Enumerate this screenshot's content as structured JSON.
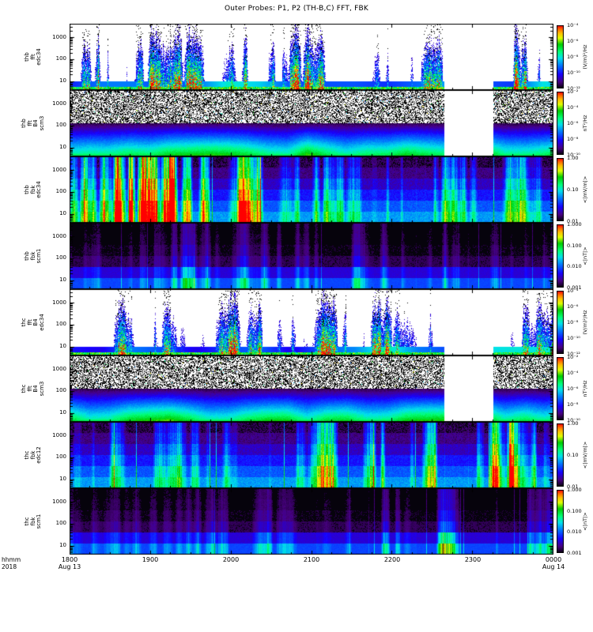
{
  "title": "Outer Probes: P1, P2 (TH-B,C) FFT, FBK",
  "footer": {
    "line1": "hhmm",
    "line2": "2018"
  },
  "x_axis": {
    "tick_labels": [
      "1800",
      "1900",
      "2000",
      "2100",
      "2200",
      "2300",
      "0000"
    ],
    "start_date": "Aug 13",
    "end_date": "Aug 14"
  },
  "y_axis": {
    "scale": "log",
    "units": "Hz",
    "range": [
      4,
      4096
    ],
    "tick_values": [
      1000,
      100,
      10
    ],
    "tick_labels": [
      "1000",
      "100",
      "10"
    ]
  },
  "chart_data": {
    "type": "heatmap",
    "subtype": "spectrogram_stack",
    "title": "Outer Probes: P1, P2 (TH-B,C) FFT, FBK",
    "time_start": "Aug 13 2018 18:00",
    "time_end": "Aug 14 2018 00:00",
    "x_hours": [
      18,
      24
    ],
    "grid": false,
    "colormap": "rainbow",
    "data_gap_fraction": [
      0.775,
      0.877
    ],
    "panels": [
      {
        "id": "thb-fft-edc34",
        "label_lines": [
          "thb",
          "fft",
          "edc34"
        ],
        "quantity": "E-field FFT power spectrum",
        "style": "e_fft",
        "seed": 11,
        "scale": 1.1,
        "gap": true,
        "colorbar": {
          "tick_labels": [
            "10⁻⁴",
            "10⁻⁶",
            "10⁻⁸",
            "10⁻¹⁰",
            "10⁻¹²"
          ],
          "unit": "(V/m)²/Hz",
          "min": 1e-12,
          "max": 0.0001
        }
      },
      {
        "id": "thb-fft-scm3",
        "label_lines": [
          "thb",
          "fft",
          "B4",
          "scm3"
        ],
        "quantity": "B-field FFT power spectrum",
        "style": "b_fft",
        "seed": 22,
        "scale": 1,
        "gap": true,
        "colorbar": {
          "tick_labels": [
            "10⁻²",
            "10⁻⁴",
            "10⁻⁶",
            "10⁻⁸",
            "10⁻¹⁰"
          ],
          "unit": "nT²/Hz",
          "min": 1e-10,
          "max": 0.01
        }
      },
      {
        "id": "thb-fbk-edc34",
        "label_lines": [
          "thb",
          "fbk",
          "edc34"
        ],
        "quantity": "E-field filter-bank amplitude",
        "style": "fbk_e",
        "seed": 33,
        "scale": 1,
        "gap": false,
        "activity_profile": [
          1.3,
          1.15,
          1.3,
          1.05,
          0.9,
          0.6,
          0.55,
          0.6,
          0.5,
          0.6
        ],
        "colorbar": {
          "tick_labels": [
            "1.00",
            "0.10",
            "0.01"
          ],
          "unit": "<|mV/m|>",
          "min": 0.01,
          "max": 1.0
        }
      },
      {
        "id": "thb-fbk-scm1",
        "label_lines": [
          "thb",
          "fbk",
          "scm1"
        ],
        "quantity": "B-field filter-bank amplitude",
        "style": "fbk_b",
        "seed": 44,
        "scale": 1,
        "gap": false,
        "activity_profile": [
          0.6,
          0.6,
          0.7,
          0.6,
          0.7,
          0.65,
          0.6,
          0.7,
          0.6,
          0.6
        ],
        "colorbar": {
          "tick_labels": [
            "1.000",
            "0.100",
            "0.010",
            "0.001"
          ],
          "unit": "<|nT|>",
          "min": 0.001,
          "max": 1.0
        }
      },
      {
        "id": "thc-fft-edc34",
        "label_lines": [
          "thc",
          "fft",
          "B4",
          "edc34"
        ],
        "quantity": "E-field FFT power spectrum",
        "style": "e_fft",
        "seed": 55,
        "scale": 0.85,
        "gap": true,
        "colorbar": {
          "tick_labels": [
            "10⁻⁴",
            "10⁻⁶",
            "10⁻⁸",
            "10⁻¹⁰",
            "10⁻¹²"
          ],
          "unit": "(V/m)²/Hz",
          "min": 1e-12,
          "max": 0.0001
        }
      },
      {
        "id": "thc-fft-scm3",
        "label_lines": [
          "thc",
          "fft",
          "B4",
          "scm3"
        ],
        "quantity": "B-field FFT power spectrum",
        "style": "b_fft",
        "seed": 66,
        "scale": 1,
        "gap": true,
        "colorbar": {
          "tick_labels": [
            "10⁻²",
            "10⁻⁴",
            "10⁻⁶",
            "10⁻⁸",
            "10⁻¹⁰"
          ],
          "unit": "nT²/Hz",
          "min": 1e-10,
          "max": 0.01
        }
      },
      {
        "id": "thc-fbk-edc12",
        "label_lines": [
          "thc",
          "fbk",
          "edc12"
        ],
        "quantity": "E-field filter-bank amplitude",
        "style": "fbk_e",
        "seed": 77,
        "scale": 1,
        "gap": false,
        "activity_profile": [
          0.55,
          0.5,
          0.6,
          0.55,
          0.6,
          0.7,
          0.95,
          1.05,
          0.95,
          0.8
        ],
        "colorbar": {
          "tick_labels": [
            "1.00",
            "0.10",
            "0.01"
          ],
          "unit": "<|mV/m|>",
          "min": 0.01,
          "max": 1.0
        }
      },
      {
        "id": "thc-fbk-scm1",
        "label_lines": [
          "thc",
          "fbk",
          "scm1"
        ],
        "quantity": "B-field filter-bank amplitude",
        "style": "fbk_b",
        "seed": 88,
        "scale": 1,
        "gap": false,
        "activity_profile": [
          0.5,
          0.5,
          0.6,
          0.6,
          0.7,
          0.8,
          0.9,
          1.0,
          0.9,
          0.8
        ],
        "colorbar": {
          "tick_labels": [
            "1.000",
            "0.100",
            "0.010",
            "0.001"
          ],
          "unit": "<|nT|>",
          "min": 0.001,
          "max": 1.0
        }
      }
    ]
  }
}
